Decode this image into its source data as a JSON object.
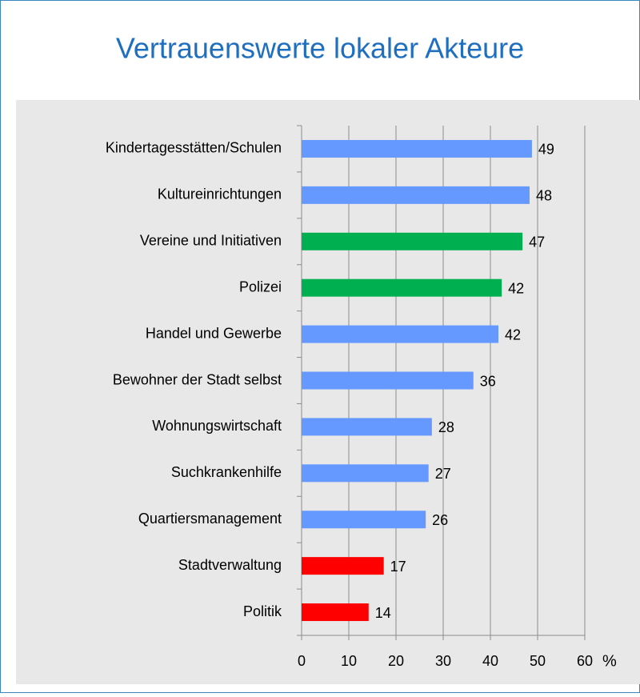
{
  "chart_data": {
    "type": "barh",
    "title": "Vertrauenswerte lokaler Akteure",
    "categories": [
      "Kindertagesstätten/Schulen",
      "Kultureinrichtungen",
      "Vereine und Initiativen",
      "Polizei",
      "Handel und Gewerbe",
      "Bewohner der Stadt selbst",
      "Wohnungswirtschaft",
      "Suchkrankenhilfe",
      "Quartiersmanagement",
      "Stadtverwaltung",
      "Politik"
    ],
    "values": [
      48.8,
      48.3,
      46.8,
      42.4,
      41.7,
      36.4,
      27.6,
      26.9,
      26.3,
      17.4,
      14.2
    ],
    "value_labels": [
      "49",
      "48",
      "47",
      "42",
      "42",
      "36",
      "28",
      "27",
      "26",
      "17",
      "14"
    ],
    "colors": [
      "#6699ff",
      "#6699ff",
      "#00b050",
      "#00b050",
      "#6699ff",
      "#6699ff",
      "#6699ff",
      "#6699ff",
      "#6699ff",
      "#ff0000",
      "#ff0000"
    ],
    "xlim": [
      0,
      60
    ],
    "xticks": [
      0,
      10,
      20,
      30,
      40,
      50,
      60
    ],
    "xlabel": "%",
    "grid": true
  }
}
